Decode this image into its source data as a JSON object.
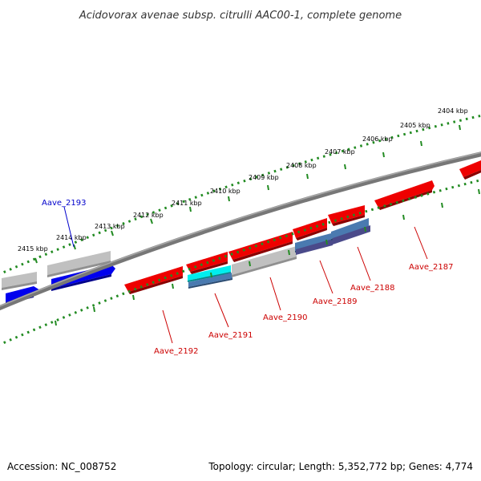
{
  "title": "Acidovorax avenae subsp. citrulli AAC00-1, complete genome",
  "footer": {
    "accession": "Accession: NC_008752",
    "summary": "Topology: circular; Length: 5,352,772 bp; Genes: 4,774"
  },
  "kbp_labels": [
    "2415 kbp",
    "2414 kbp",
    "2413 kbp",
    "2412 kbp",
    "2411 kbp",
    "2410 kbp",
    "2409 kbp",
    "2408 kbp",
    "2407 kbp",
    "2406 kbp",
    "2405 kbp",
    "2404 kbp"
  ],
  "gene_labels": {
    "aave_2193": "Aave_2193",
    "aave_2192": "Aave_2192",
    "aave_2191": "Aave_2191",
    "aave_2190": "Aave_2190",
    "aave_2189": "Aave_2189",
    "aave_2188": "Aave_2188",
    "aave_2187": "Aave_2187"
  },
  "colors": {
    "highlighted_gene": "#0000cc",
    "gene": "#cc0000",
    "cds_red": "#ee0000",
    "cds_blue": "#0000ee",
    "rna_cyan": "#00eeee",
    "feature_gray": "#bbbbbb",
    "feature_steel": "#4a7ab0",
    "feature_slate": "#4a4a8a",
    "backbone": "#777777",
    "tick_green": "#228b22"
  }
}
